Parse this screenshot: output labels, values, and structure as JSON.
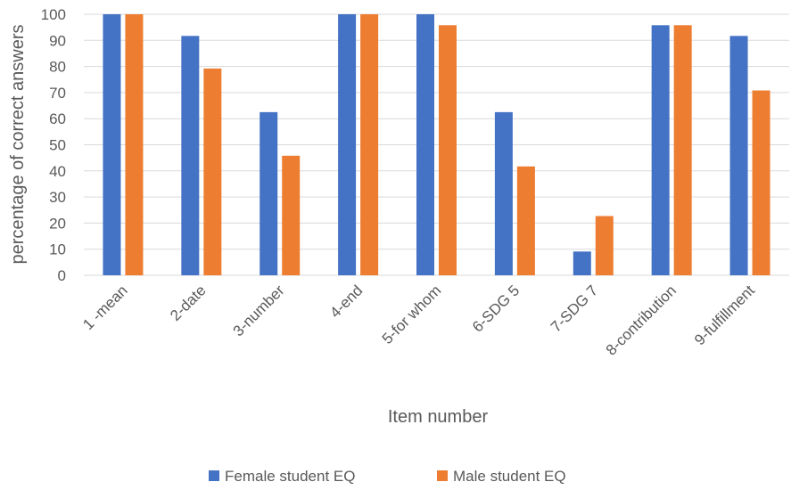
{
  "chart_data": {
    "type": "bar",
    "title": "",
    "xlabel": "Item number",
    "ylabel": "percentage of correct answers",
    "ylim": [
      0,
      100
    ],
    "yticks": [
      0,
      10,
      20,
      30,
      40,
      50,
      60,
      70,
      80,
      90,
      100
    ],
    "grid": true,
    "legend_position": "bottom",
    "categories": [
      "1 -mean",
      "2-date",
      "3-number",
      "4-end",
      "5-for whom",
      "6-SDG 5",
      "7-SDG 7",
      "8-contribution",
      "9-fulfillment"
    ],
    "series": [
      {
        "name": "Female student EQ",
        "color": "#4472C4",
        "values": [
          100,
          91.7,
          62.5,
          100,
          100,
          62.5,
          9.1,
          95.8,
          91.7
        ]
      },
      {
        "name": "Male student EQ",
        "color": "#ED7D31",
        "values": [
          100,
          79.2,
          45.8,
          100,
          95.8,
          41.7,
          22.7,
          95.8,
          70.8
        ]
      }
    ]
  }
}
